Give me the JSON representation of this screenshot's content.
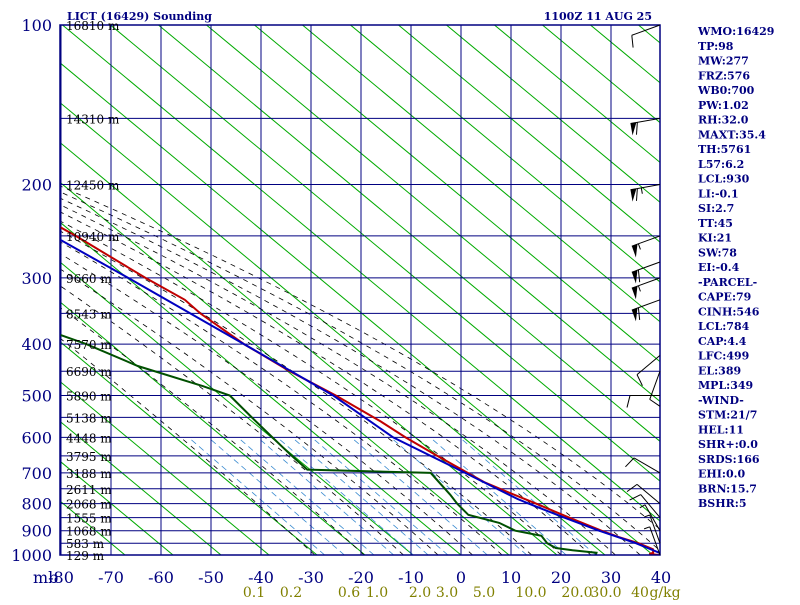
{
  "header": {
    "station": "LICT (16429) Sounding",
    "time": "1100Z 11 AUG 25"
  },
  "colors": {
    "frame": "#000080",
    "axis_text": "#000080",
    "height_text": "#000000",
    "dry_adiabat": "#00aa00",
    "moist_adiabat": "#000000",
    "mixing_ratio": "#3c8cd0",
    "temperature": "#c00000",
    "dewpoint": "#005000",
    "parcel": "#0000c0",
    "mixing_ratio_label": "#808000"
  },
  "indices": [
    "WMO:16429",
    "TP:98",
    "MW:277",
    "FRZ:576",
    "WB0:700",
    "PW:1.02",
    "RH:32.0",
    "MAXT:35.4",
    "TH:5761",
    "L57:6.2",
    "LCL:930",
    "LI:-0.1",
    "SI:2.7",
    "TT:45",
    "KI:21",
    "SW:78",
    "EI:-0.4",
    "-PARCEL-",
    "CAPE:79",
    "CINH:546",
    "LCL:784",
    "CAP:4.4",
    "LFC:499",
    "EL:389",
    "MPL:349",
    "-WIND-",
    "STM:21/7",
    "HEL:11",
    "SHR+:0.0",
    "SRDS:166",
    "EHI:0.0",
    "BRN:15.7",
    "BSHR:5"
  ],
  "chart_data": {
    "type": "line",
    "subtype": "skew-T log-p sounding",
    "y_axis": {
      "scale": "log",
      "range_hpa": [
        1000,
        100
      ],
      "tick_labels": [
        "100",
        "200",
        "300",
        "400",
        "500",
        "600",
        "700",
        "800",
        "900",
        "1000"
      ]
    },
    "x_axis": {
      "range_c": [
        -80,
        0
      ],
      "tick_labels": [
        "-80",
        "-70",
        "-60",
        "-50",
        "-40",
        "-30",
        "-20",
        "-10",
        "0",
        "10",
        "20",
        "30",
        "40"
      ],
      "corner_label": "mb"
    },
    "mixing_ratio_labels": [
      "0.1",
      "0.2",
      "0.6",
      "1.0",
      "2.0",
      "3.0",
      "5.0",
      "10.0",
      "20.0",
      "30.0",
      "40"
    ],
    "mixing_ratio_unit": "g/kg",
    "height_levels": [
      {
        "p": 100,
        "label": "16810 m"
      },
      {
        "p": 150,
        "label": "14310 m"
      },
      {
        "p": 200,
        "label": "12450 m"
      },
      {
        "p": 250,
        "label": "10940 m"
      },
      {
        "p": 300,
        "label": "9660 m"
      },
      {
        "p": 350,
        "label": "8543 m"
      },
      {
        "p": 400,
        "label": "7570 m"
      },
      {
        "p": 450,
        "label": "6690 m"
      },
      {
        "p": 500,
        "label": "5890 m"
      },
      {
        "p": 550,
        "label": "5138 m"
      },
      {
        "p": 600,
        "label": "4448 m"
      },
      {
        "p": 650,
        "label": "3795 m"
      },
      {
        "p": 700,
        "label": "3188 m"
      },
      {
        "p": 750,
        "label": "2611 m"
      },
      {
        "p": 800,
        "label": "2068 m"
      },
      {
        "p": 850,
        "label": "1555 m"
      },
      {
        "p": 900,
        "label": "1068 m"
      },
      {
        "p": 950,
        "label": "583 m"
      },
      {
        "p": 1000,
        "label": "129 m"
      }
    ],
    "series": [
      {
        "name": "Temperature",
        "points": [
          [
            1000,
            30
          ],
          [
            996,
            28
          ],
          [
            990,
            29
          ],
          [
            975,
            29.5
          ],
          [
            950,
            27.5
          ],
          [
            925,
            24.5
          ],
          [
            900,
            22
          ],
          [
            850,
            17.5
          ],
          [
            800,
            13
          ],
          [
            760,
            9
          ],
          [
            730,
            6
          ],
          [
            700,
            4
          ],
          [
            650,
            0.5
          ],
          [
            600,
            -3
          ],
          [
            560,
            -5.5
          ],
          [
            500,
            -10.5
          ],
          [
            450,
            -16
          ],
          [
            400,
            -21
          ],
          [
            350,
            -25
          ],
          [
            330,
            -26
          ],
          [
            300,
            -30.5
          ],
          [
            250,
            -38
          ],
          [
            200,
            -48.5
          ],
          [
            150,
            -63.5
          ],
          [
            120,
            -71
          ],
          [
            100,
            -78
          ]
        ]
      },
      {
        "name": "Dewpoint",
        "points": [
          [
            1000,
            17
          ],
          [
            990,
            17.5
          ],
          [
            980,
            13
          ],
          [
            970,
            10
          ],
          [
            950,
            9
          ],
          [
            920,
            9
          ],
          [
            900,
            4.5
          ],
          [
            870,
            2.5
          ],
          [
            840,
            -2.5
          ],
          [
            800,
            -3
          ],
          [
            770,
            -3
          ],
          [
            700,
            -3.5
          ],
          [
            690,
            -28
          ],
          [
            650,
            -29
          ],
          [
            600,
            -30
          ],
          [
            550,
            -31
          ],
          [
            500,
            -32
          ],
          [
            480,
            -36
          ],
          [
            440,
            -46
          ],
          [
            400,
            -53
          ],
          [
            360,
            -63
          ],
          [
            320,
            -71
          ],
          [
            300,
            -75
          ],
          [
            250,
            -82
          ],
          [
            200,
            -86
          ],
          [
            185,
            -84
          ],
          [
            160,
            -86
          ],
          [
            150,
            -96
          ]
        ]
      },
      {
        "name": "Parcel",
        "points": [
          [
            1000,
            31
          ],
          [
            950,
            27
          ],
          [
            900,
            21.5
          ],
          [
            850,
            16.5
          ],
          [
            800,
            11.5
          ],
          [
            784,
            10
          ],
          [
            700,
            3.5
          ],
          [
            600,
            -5.5
          ],
          [
            500,
            -11
          ],
          [
            400,
            -21
          ],
          [
            300,
            -34
          ],
          [
            200,
            -53
          ],
          [
            150,
            -66
          ]
        ]
      }
    ],
    "wind_barbs": [
      {
        "p": 100,
        "dir": 250,
        "kt": 10
      },
      {
        "p": 150,
        "dir": 260,
        "kt": 60
      },
      {
        "p": 200,
        "dir": 260,
        "kt": 65
      },
      {
        "p": 250,
        "dir": 250,
        "kt": 55
      },
      {
        "p": 280,
        "dir": 250,
        "kt": 60
      },
      {
        "p": 300,
        "dir": 250,
        "kt": 55
      },
      {
        "p": 330,
        "dir": 250,
        "kt": 60
      },
      {
        "p": 420,
        "dir": 230,
        "kt": 10
      },
      {
        "p": 450,
        "dir": 200,
        "kt": 10
      },
      {
        "p": 500,
        "dir": 270,
        "kt": 10
      },
      {
        "p": 700,
        "dir": 300,
        "kt": 10
      },
      {
        "p": 800,
        "dir": 310,
        "kt": 10
      },
      {
        "p": 850,
        "dir": 320,
        "kt": 10
      },
      {
        "p": 900,
        "dir": 330,
        "kt": 5
      },
      {
        "p": 950,
        "dir": 340,
        "kt": 5
      },
      {
        "p": 1000,
        "dir": 340,
        "kt": 5
      }
    ]
  }
}
